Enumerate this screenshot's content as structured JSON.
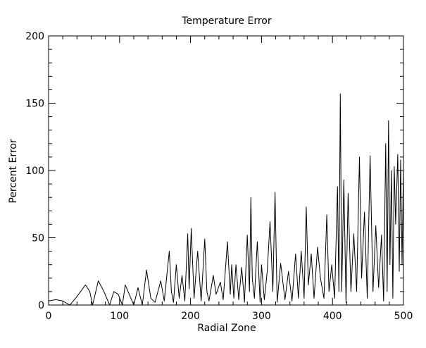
{
  "chart_data": {
    "type": "line",
    "title": "Temperature Error",
    "xlabel": "Radial Zone",
    "ylabel": "Percent Error",
    "xlim": [
      0,
      500
    ],
    "ylim": [
      0,
      200
    ],
    "x_ticks": [
      0,
      100,
      200,
      300,
      400,
      500
    ],
    "y_ticks": [
      0,
      50,
      100,
      150,
      200
    ],
    "grid": false,
    "colors": {
      "line": "#000000",
      "axes": "#000000",
      "background": "#ffffff"
    },
    "series": [
      {
        "x": [
          0,
          10,
          20,
          30,
          38,
          45,
          52,
          58,
          62,
          70,
          78,
          86,
          92,
          98,
          104,
          108,
          116,
          120,
          126,
          132,
          138,
          144,
          150,
          158,
          163,
          170,
          173,
          176,
          180,
          184,
          188,
          192,
          196,
          198,
          201,
          205,
          210,
          215,
          220,
          223,
          226,
          232,
          236,
          242,
          246,
          252,
          256,
          258,
          261,
          264,
          268,
          272,
          276,
          280,
          283,
          285,
          287,
          290,
          294,
          298,
          300,
          304,
          308,
          312,
          316,
          319,
          322,
          327,
          333,
          338,
          343,
          348,
          352,
          356,
          360,
          363,
          366,
          370,
          374,
          379,
          383,
          388,
          392,
          395,
          399,
          403,
          407,
          409,
          411,
          413,
          416,
          419,
          422,
          426,
          430,
          434,
          438,
          441,
          445,
          449,
          453,
          457,
          461,
          465,
          469,
          472,
          475,
          477,
          479,
          481,
          483,
          485,
          487,
          489,
          492,
          494,
          496,
          498,
          500
        ],
        "y": [
          3,
          4,
          3,
          0,
          5,
          10,
          15,
          10,
          0,
          18,
          10,
          0,
          10,
          8,
          0,
          15,
          5,
          0,
          13,
          0,
          26,
          5,
          2,
          18,
          3,
          40,
          10,
          2,
          30,
          5,
          22,
          3,
          53,
          12,
          57,
          5,
          40,
          3,
          49,
          10,
          3,
          22,
          8,
          17,
          4,
          47,
          8,
          30,
          5,
          30,
          4,
          28,
          2,
          52,
          10,
          80,
          20,
          5,
          47,
          2,
          30,
          4,
          25,
          62,
          10,
          84,
          2,
          31,
          4,
          25,
          3,
          38,
          5,
          40,
          5,
          73,
          15,
          38,
          5,
          43,
          20,
          5,
          67,
          10,
          30,
          5,
          88,
          10,
          157,
          10,
          93,
          2,
          83,
          10,
          53,
          10,
          110,
          20,
          69,
          5,
          111,
          10,
          59,
          13,
          52,
          3,
          120,
          10,
          137,
          30,
          100,
          5,
          103,
          60,
          112,
          25,
          108,
          30,
          103
        ],
        "stroke_width": 1
      }
    ]
  }
}
